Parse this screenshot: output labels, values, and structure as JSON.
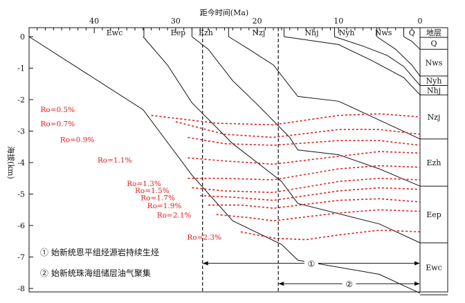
{
  "top_axis": {
    "title": "距今时间(Ma)",
    "ticks": [
      {
        "label": "40",
        "value": 40
      },
      {
        "label": "30",
        "value": 30
      },
      {
        "label": "20",
        "value": 20
      },
      {
        "label": "10",
        "value": 10
      },
      {
        "label": "0",
        "value": 0
      }
    ]
  },
  "left_axis": {
    "title": "海拔(km)",
    "ticks": [
      {
        "label": "0",
        "value": 0
      },
      {
        "label": "-1",
        "value": -1
      },
      {
        "label": "-2",
        "value": -2
      },
      {
        "label": "-3",
        "value": -3
      },
      {
        "label": "-4",
        "value": -4
      },
      {
        "label": "-5",
        "value": -5
      },
      {
        "label": "-6",
        "value": -6
      },
      {
        "label": "-7",
        "value": -7
      },
      {
        "label": "-8",
        "value": -8
      }
    ]
  },
  "top_formations": [
    {
      "label": "Ewc",
      "x": 37.5
    },
    {
      "label": "Eep",
      "x": 29.7
    },
    {
      "label": "Ezh",
      "x": 26.3
    },
    {
      "label": "Nzj",
      "x": 19.8
    },
    {
      "label": "Nhj",
      "x": 13.3
    },
    {
      "label": "Nyh",
      "x": 9.0
    },
    {
      "label": "Nws",
      "x": 4.5
    },
    {
      "label": "Q",
      "x": 1.0
    }
  ],
  "boundary_ticks": [
    33.9,
    28.0,
    23.5,
    16.7,
    10.5,
    5.3,
    2.0
  ],
  "strata_column": {
    "header": "地层",
    "layers": [
      {
        "label": "Q",
        "top": 0.0,
        "bottom": -0.4
      },
      {
        "label": "Nws",
        "top": -0.4,
        "bottom": -1.25
      },
      {
        "label": "Nyh",
        "top": -1.25,
        "bottom": -1.55
      },
      {
        "label": "Nhj",
        "top": -1.55,
        "bottom": -1.85
      },
      {
        "label": "Nzj",
        "top": -1.85,
        "bottom": -3.25
      },
      {
        "label": "Ezh",
        "top": -3.25,
        "bottom": -4.75
      },
      {
        "label": "Eep",
        "top": -4.75,
        "bottom": -6.55
      },
      {
        "label": "Ewc",
        "top": -6.55,
        "bottom": -8.2
      }
    ]
  },
  "burial_curves": [
    [
      [
        48.0,
        0.0
      ],
      [
        34.0,
        -2.32
      ],
      [
        28.0,
        -4.4
      ],
      [
        23.0,
        -5.85
      ],
      [
        17.0,
        -6.6
      ],
      [
        15.0,
        -7.1
      ],
      [
        5.0,
        -7.55
      ],
      [
        0.0,
        -8.15
      ]
    ],
    [
      [
        34.0,
        0.0
      ],
      [
        31.0,
        -0.9
      ],
      [
        28.0,
        -2.1
      ],
      [
        23.0,
        -3.4
      ],
      [
        17.0,
        -4.6
      ],
      [
        15.0,
        -5.3
      ],
      [
        5.0,
        -5.95
      ],
      [
        0.0,
        -6.55
      ]
    ],
    [
      [
        28.0,
        0.0
      ],
      [
        26.0,
        -0.4
      ],
      [
        23.0,
        -1.4
      ],
      [
        20.0,
        -2.15
      ],
      [
        16.0,
        -3.2
      ],
      [
        15.0,
        -3.6
      ],
      [
        10.0,
        -3.75
      ],
      [
        5.0,
        -4.2
      ],
      [
        0.0,
        -4.75
      ]
    ],
    [
      [
        23.5,
        0.0
      ],
      [
        21.0,
        -0.4
      ],
      [
        18.0,
        -0.9
      ],
      [
        15.0,
        -1.9
      ],
      [
        10.0,
        -2.05
      ],
      [
        5.0,
        -2.65
      ],
      [
        0.0,
        -3.25
      ]
    ],
    [
      [
        16.7,
        0.0
      ],
      [
        10.0,
        -0.25
      ],
      [
        6.0,
        -0.75
      ],
      [
        2.0,
        -1.3
      ],
      [
        0.0,
        -1.85
      ]
    ],
    [
      [
        10.5,
        0.0
      ],
      [
        7.0,
        -0.3
      ],
      [
        4.0,
        -0.6
      ],
      [
        2.0,
        -0.95
      ],
      [
        0.0,
        -1.55
      ]
    ],
    [
      [
        5.3,
        0.0
      ],
      [
        3.0,
        -0.4
      ],
      [
        1.0,
        -0.9
      ],
      [
        0.0,
        -1.25
      ]
    ],
    [
      [
        2.0,
        0.0
      ],
      [
        1.0,
        -0.15
      ],
      [
        0.0,
        -0.4
      ]
    ]
  ],
  "vro_isolines": [
    {
      "label": "Ro=0.5%",
      "points": [
        [
          33.0,
          -2.5
        ],
        [
          25.0,
          -2.75
        ],
        [
          18.0,
          -2.8
        ],
        [
          10.0,
          -2.5
        ],
        [
          5.0,
          -2.45
        ],
        [
          0.0,
          -2.55
        ]
      ]
    },
    {
      "label": "Ro=0.7%",
      "points": [
        [
          30.0,
          -2.7
        ],
        [
          24.0,
          -3.1
        ],
        [
          18.0,
          -3.2
        ],
        [
          10.0,
          -2.95
        ],
        [
          5.0,
          -2.95
        ],
        [
          0.0,
          -3.1
        ]
      ]
    },
    {
      "label": "Ro=0.9%",
      "points": [
        [
          28.5,
          -3.2
        ],
        [
          24.0,
          -3.4
        ],
        [
          18.0,
          -3.45
        ],
        [
          10.0,
          -3.3
        ],
        [
          5.0,
          -3.3
        ],
        [
          0.0,
          -3.45
        ]
      ]
    },
    {
      "label": "Ro=1.1%",
      "points": [
        [
          28.5,
          -3.85
        ],
        [
          24.0,
          -3.95
        ],
        [
          18.0,
          -4.05
        ],
        [
          10.0,
          -3.8
        ],
        [
          5.0,
          -3.65
        ],
        [
          0.0,
          -3.7
        ]
      ]
    },
    {
      "label": "Ro=1.3%",
      "points": [
        [
          28.5,
          -4.5
        ],
        [
          24.0,
          -4.5
        ],
        [
          18.0,
          -4.55
        ],
        [
          10.0,
          -4.2
        ],
        [
          5.0,
          -4.1
        ],
        [
          0.0,
          -4.15
        ]
      ]
    },
    {
      "label": "Ro=1.5%",
      "points": [
        [
          28.0,
          -4.8
        ],
        [
          24.0,
          -4.9
        ],
        [
          18.0,
          -4.95
        ],
        [
          10.0,
          -4.6
        ],
        [
          5.0,
          -4.5
        ],
        [
          0.0,
          -4.55
        ]
      ]
    },
    {
      "label": "Ro=1.7%",
      "points": [
        [
          27.0,
          -5.05
        ],
        [
          23.0,
          -5.1
        ],
        [
          18.0,
          -5.2
        ],
        [
          10.0,
          -4.9
        ],
        [
          5.0,
          -4.8
        ],
        [
          0.0,
          -4.85
        ]
      ]
    },
    {
      "label": "Ro=1.9%",
      "points": [
        [
          26.0,
          -5.35
        ],
        [
          22.0,
          -5.35
        ],
        [
          18.0,
          -5.45
        ],
        [
          10.0,
          -5.2
        ],
        [
          5.0,
          -5.15
        ],
        [
          0.0,
          -5.25
        ]
      ]
    },
    {
      "label": "Ro=2.1%",
      "points": [
        [
          25.0,
          -5.65
        ],
        [
          21.0,
          -5.75
        ],
        [
          18.0,
          -5.85
        ],
        [
          10.0,
          -5.6
        ],
        [
          5.0,
          -5.5
        ],
        [
          0.0,
          -5.55
        ]
      ]
    },
    {
      "label": "Ro=2.3%",
      "points": [
        [
          22.0,
          -6.2
        ],
        [
          18.0,
          -6.4
        ],
        [
          14.0,
          -6.45
        ],
        [
          10.0,
          -6.3
        ],
        [
          5.0,
          -6.15
        ],
        [
          0.0,
          -6.2
        ]
      ]
    }
  ],
  "vro_label_pos": [
    [
      46.6,
      -2.4
    ],
    [
      46.6,
      -2.85
    ],
    [
      44.2,
      -3.35
    ],
    [
      39.6,
      -4.0
    ],
    [
      36.0,
      -4.75
    ],
    [
      35.0,
      -4.97
    ],
    [
      34.3,
      -5.2
    ],
    [
      33.5,
      -5.45
    ],
    [
      32.3,
      -5.75
    ],
    [
      28.6,
      -6.45
    ]
  ],
  "events": [
    {
      "marker": "①",
      "text": "始新统恩平组烃源岩持续生烃",
      "from": 26.7,
      "to": 0.0,
      "y": -7.2
    },
    {
      "marker": "②",
      "text": "始新统珠海组储层油气聚集",
      "from": 17.4,
      "to": 0.0,
      "y": -7.85
    }
  ],
  "dashed_verticals": [
    26.7,
    17.4
  ]
}
